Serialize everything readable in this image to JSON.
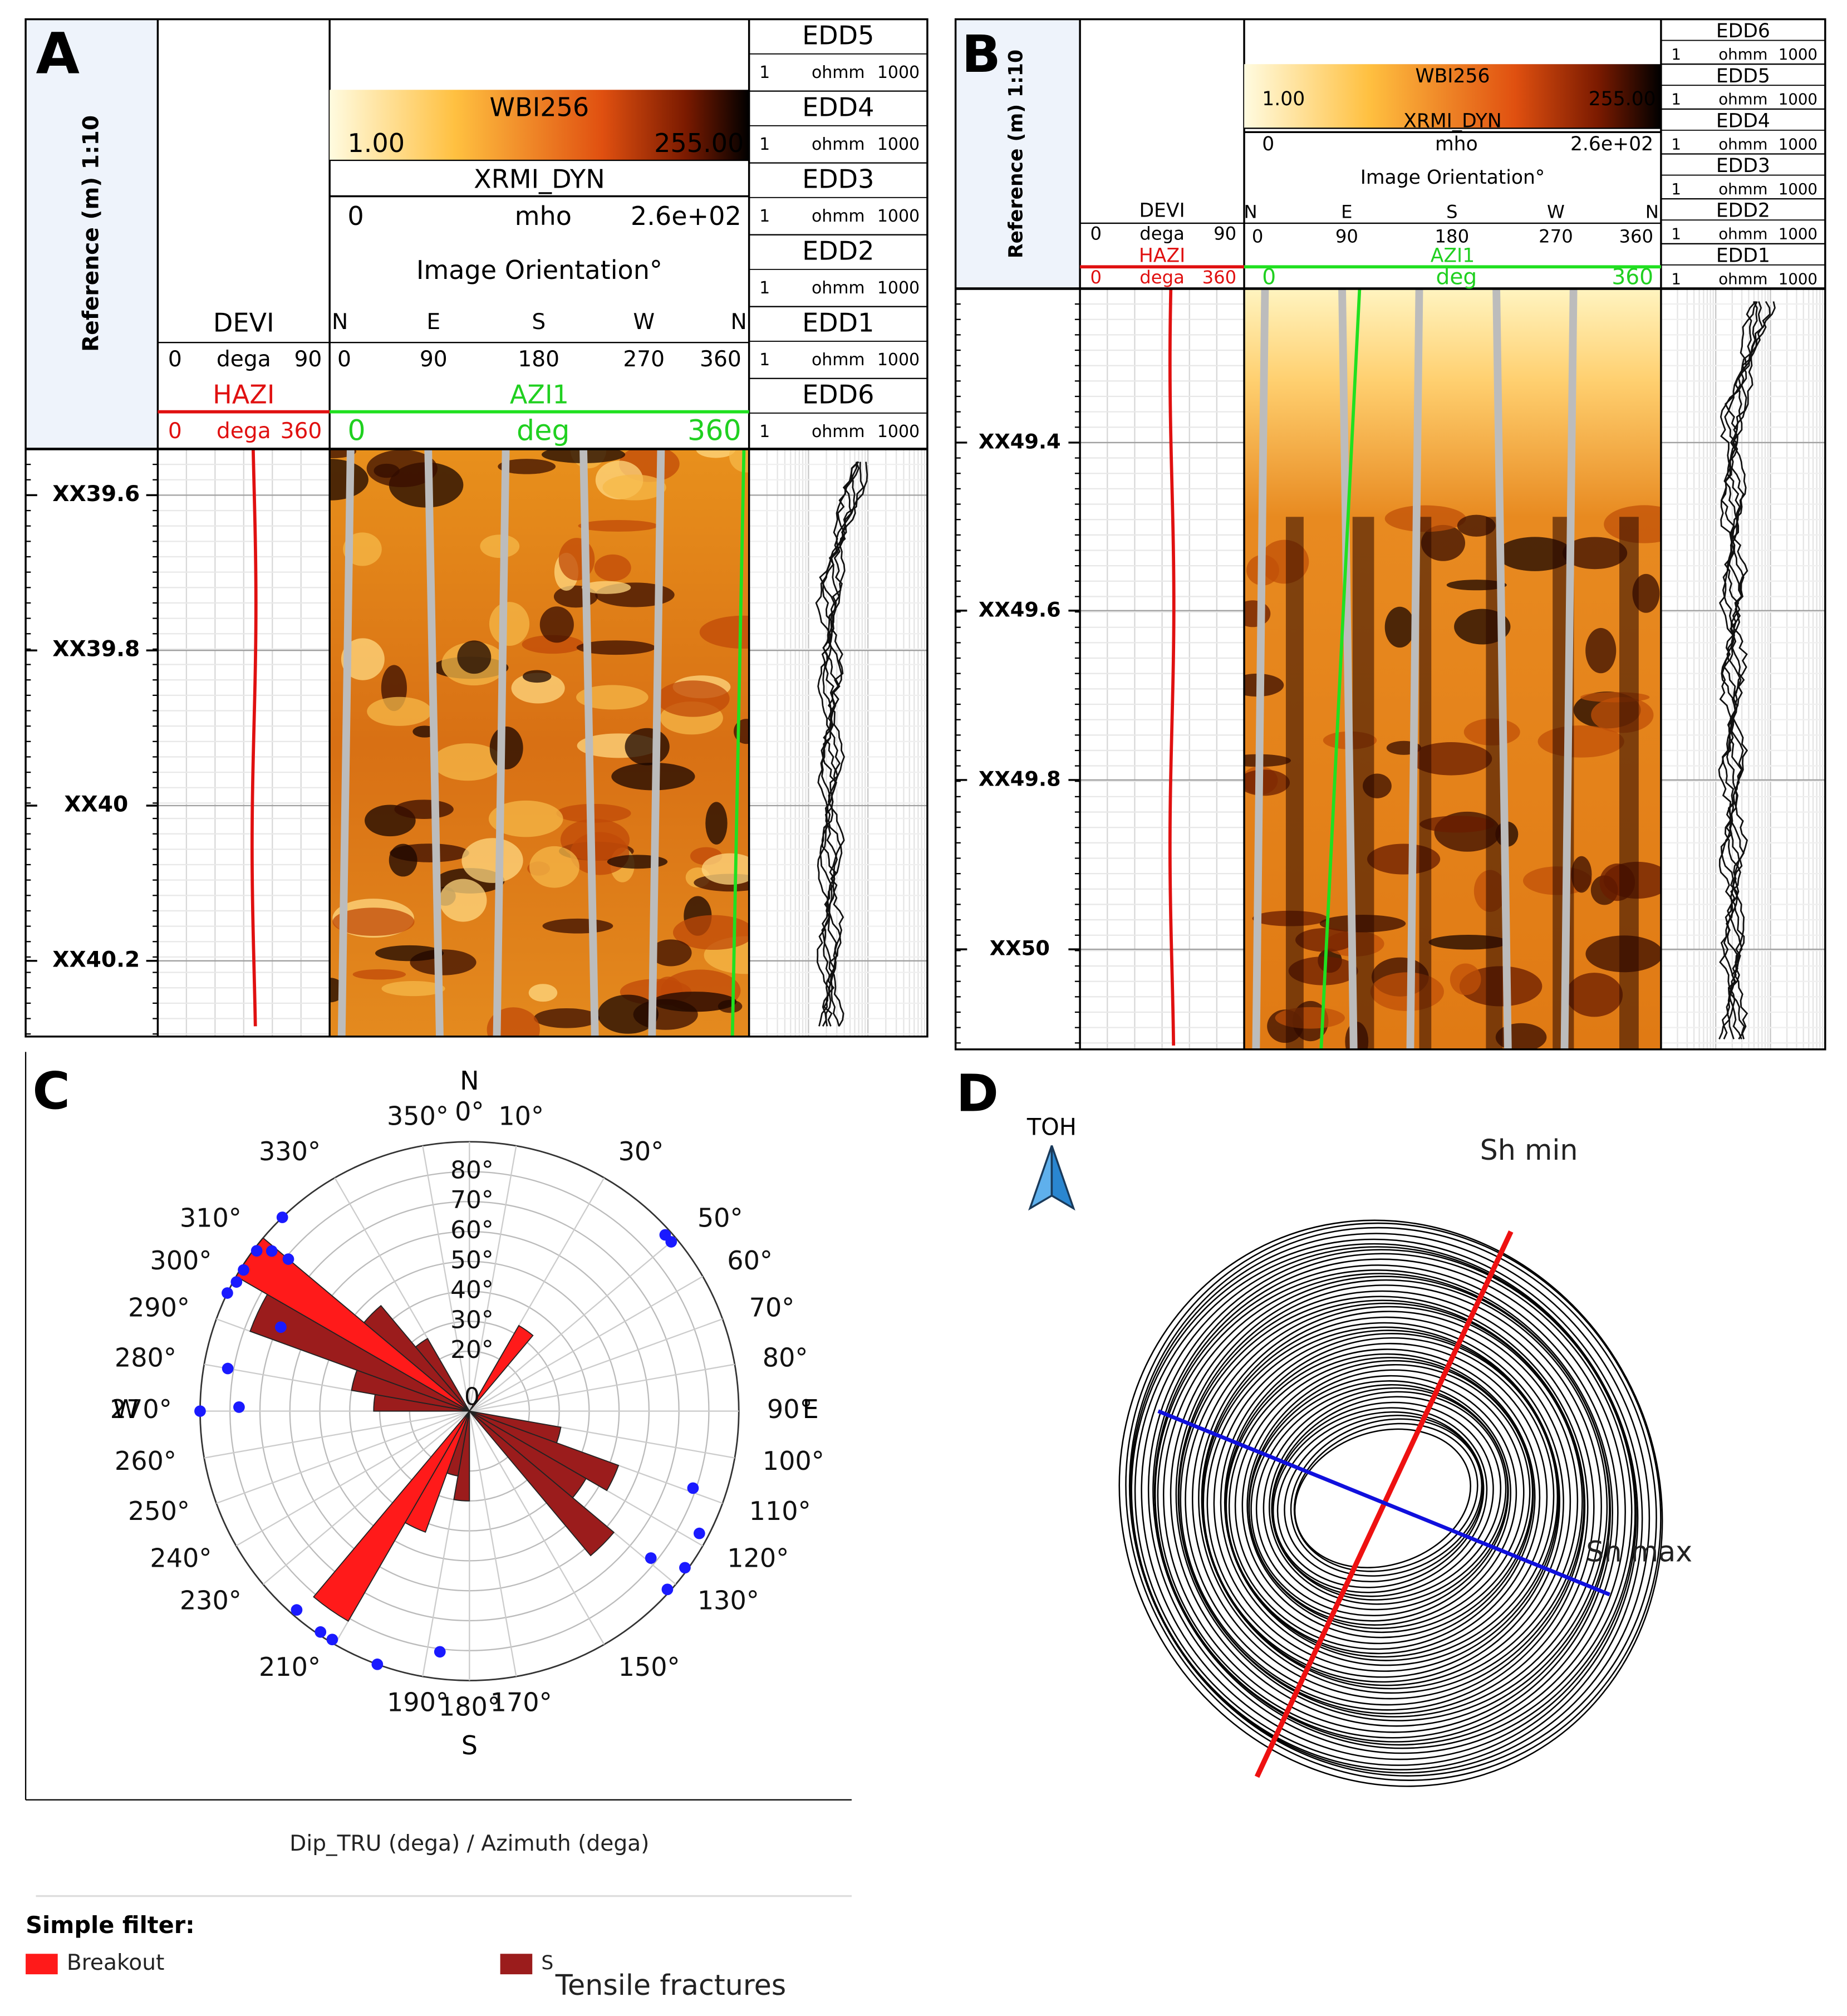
{
  "panels": {
    "A": {
      "label": "A",
      "reference": "Reference (m) 1:10",
      "depths": [
        "XX39.6",
        "XX39.8",
        "XX40",
        "XX40.2"
      ],
      "devi": {
        "name": "DEVI",
        "scale": [
          "0",
          "dega",
          "90"
        ]
      },
      "hazi": {
        "name": "HAZI",
        "scale": [
          "0",
          "dega",
          "360"
        ]
      },
      "image": {
        "name": "WBI256",
        "min": "1.00",
        "max": "255.00",
        "curve": "XRMI_DYN",
        "scale": [
          "0",
          "mho",
          "2.6e+02"
        ],
        "orientation": "Image Orientation°",
        "compass": [
          "N",
          "E",
          "S",
          "W",
          "N"
        ],
        "degrees": [
          "0",
          "90",
          "180",
          "270",
          "360"
        ]
      },
      "azi": {
        "name": "AZI1",
        "scale": [
          "0",
          "deg",
          "360"
        ]
      },
      "edd": [
        {
          "name": "EDD5",
          "scale": [
            "1",
            "ohmm",
            "1000"
          ]
        },
        {
          "name": "EDD4",
          "scale": [
            "1",
            "ohmm",
            "1000"
          ]
        },
        {
          "name": "EDD3",
          "scale": [
            "1",
            "ohmm",
            "1000"
          ]
        },
        {
          "name": "EDD2",
          "scale": [
            "1",
            "ohmm",
            "1000"
          ]
        },
        {
          "name": "EDD1",
          "scale": [
            "1",
            "ohmm",
            "1000"
          ]
        },
        {
          "name": "EDD6",
          "scale": [
            "1",
            "ohmm",
            "1000"
          ]
        }
      ]
    },
    "B": {
      "label": "B",
      "reference": "Reference (m) 1:10",
      "depths": [
        "XX49.4",
        "XX49.6",
        "XX49.8",
        "XX50"
      ],
      "devi": {
        "name": "DEVI",
        "scale": [
          "0",
          "dega",
          "90"
        ]
      },
      "hazi": {
        "name": "HAZI",
        "scale": [
          "0",
          "dega",
          "360"
        ]
      },
      "image": {
        "name": "WBI256",
        "min": "1.00",
        "max": "255.00",
        "curve": "XRMI_DYN",
        "scale": [
          "0",
          "mho",
          "2.6e+02"
        ],
        "orientation": "Image Orientation°",
        "compass": [
          "N",
          "E",
          "S",
          "W",
          "N"
        ],
        "degrees": [
          "0",
          "90",
          "180",
          "270",
          "360"
        ]
      },
      "azi": {
        "name": "AZI1",
        "scale": [
          "0",
          "deg",
          "360"
        ]
      },
      "edd": [
        {
          "name": "EDD6",
          "scale": [
            "1",
            "ohmm",
            "1000"
          ]
        },
        {
          "name": "EDD5",
          "scale": [
            "1",
            "ohmm",
            "1000"
          ]
        },
        {
          "name": "EDD4",
          "scale": [
            "1",
            "ohmm",
            "1000"
          ]
        },
        {
          "name": "EDD3",
          "scale": [
            "1",
            "ohmm",
            "1000"
          ]
        },
        {
          "name": "EDD2",
          "scale": [
            "1",
            "ohmm",
            "1000"
          ]
        },
        {
          "name": "EDD1",
          "scale": [
            "1",
            "ohmm",
            "1000"
          ]
        }
      ]
    },
    "D": {
      "label": "D",
      "toh": "TOH",
      "sh_min": "Sh min",
      "sh_max": "Sh max"
    }
  },
  "chart_data": {
    "type": "rose",
    "panel_label": "C",
    "xlabel": "Dip_TRU (dega) / Azimuth (dega)",
    "legend_title": "Simple filter:",
    "legend_extra": "S",
    "compass": [
      "N",
      "E",
      "S",
      "W"
    ],
    "angle_ticks": [
      {
        "value": 0,
        "label": "0°"
      },
      {
        "value": 10,
        "label": "10°"
      },
      {
        "value": 30,
        "label": "30°"
      },
      {
        "value": 50,
        "label": "50°"
      },
      {
        "value": 60,
        "label": "60°"
      },
      {
        "value": 70,
        "label": "70°"
      },
      {
        "value": 80,
        "label": "80°"
      },
      {
        "value": 90,
        "label": "90°"
      },
      {
        "value": 100,
        "label": "100°"
      },
      {
        "value": 110,
        "label": "110°"
      },
      {
        "value": 120,
        "label": "120°"
      },
      {
        "value": 130,
        "label": "130°"
      },
      {
        "value": 150,
        "label": "150°"
      },
      {
        "value": 170,
        "label": "170°"
      },
      {
        "value": 180,
        "label": "180°"
      },
      {
        "value": 190,
        "label": "190°"
      },
      {
        "value": 210,
        "label": "210°"
      },
      {
        "value": 230,
        "label": "230°"
      },
      {
        "value": 240,
        "label": "240°"
      },
      {
        "value": 250,
        "label": "250°"
      },
      {
        "value": 260,
        "label": "260°"
      },
      {
        "value": 270,
        "label": "270°"
      },
      {
        "value": 280,
        "label": "280°"
      },
      {
        "value": 290,
        "label": "290°"
      },
      {
        "value": 300,
        "label": "300°"
      },
      {
        "value": 310,
        "label": "310°"
      },
      {
        "value": 330,
        "label": "330°"
      },
      {
        "value": 350,
        "label": "350°"
      }
    ],
    "rlim": [
      0,
      90
    ],
    "rticks": [
      0,
      {
        "value": 20,
        "label": "20°"
      },
      {
        "value": 30,
        "label": "30°"
      },
      {
        "value": 40,
        "label": "40°"
      },
      {
        "value": 50,
        "label": "50°"
      },
      {
        "value": 60,
        "label": "60°"
      },
      {
        "value": 70,
        "label": "70°"
      },
      {
        "value": 80,
        "label": "80°"
      }
    ],
    "bin_width": 10,
    "series": [
      {
        "name": "Tensile fractures",
        "color": "#9b1c1c",
        "bins": [
          100,
          110,
          120,
          130,
          180,
          190,
          270,
          280,
          290,
          310,
          320
        ],
        "values": [
          31,
          53,
          45,
          63,
          30,
          22,
          32,
          40,
          78,
          46,
          28
        ]
      },
      {
        "name": "Breakout",
        "color": "#ff1a1a",
        "bins": [
          30,
          200,
          210,
          300
        ],
        "values": [
          33,
          43,
          81,
          90
        ]
      }
    ],
    "points": {
      "color": "#1a1aff",
      "azimuth": [
        316,
        307,
        309,
        310,
        302,
        299,
        296,
        294,
        280,
        271,
        270,
        48,
        50,
        109,
        118,
        129,
        132,
        126,
        221,
        214,
        211,
        200,
        187
      ],
      "dip": [
        90,
        89,
        85,
        79,
        89,
        89,
        90,
        69,
        82,
        77,
        90,
        88,
        88,
        79,
        87,
        78,
        89,
        89,
        88,
        89,
        89,
        90,
        81
      ]
    }
  }
}
